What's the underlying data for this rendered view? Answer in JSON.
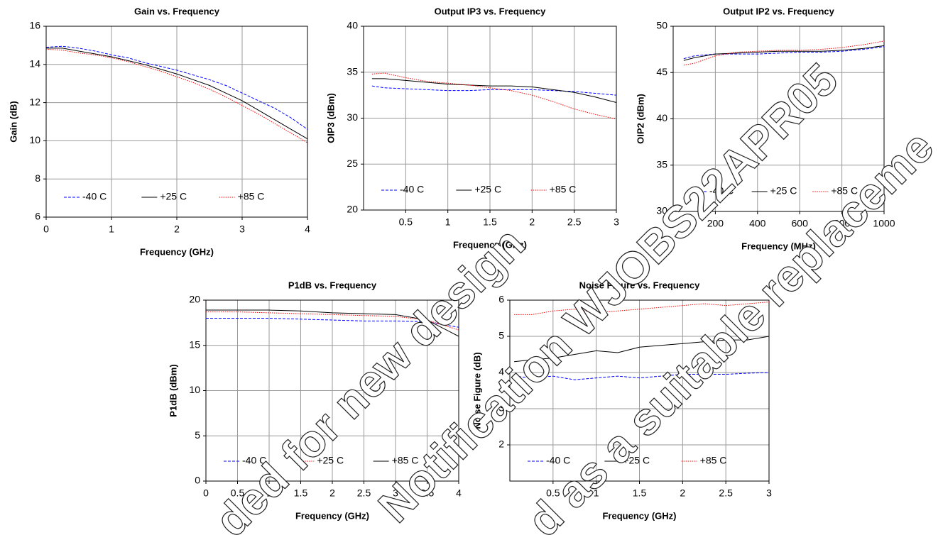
{
  "chart_data": [
    {
      "type": "line",
      "title": "Gain vs. Frequency",
      "x_label": "Frequency (GHz)",
      "y_label": "Gain (dB)",
      "x": [
        0,
        0.25,
        0.5,
        0.75,
        1,
        1.25,
        1.5,
        1.75,
        2,
        2.25,
        2.5,
        2.75,
        3,
        3.25,
        3.5,
        3.75,
        4
      ],
      "xlim": [
        0,
        4
      ],
      "xticks": [
        0,
        1,
        2,
        3,
        4
      ],
      "ylim": [
        6,
        16
      ],
      "yticks": [
        6,
        8,
        10,
        12,
        14,
        16
      ],
      "grid": true,
      "series": [
        {
          "name": "-40 C",
          "color": "#0000ff",
          "line_style": "dashed",
          "values": [
            14.9,
            14.95,
            14.85,
            14.7,
            14.5,
            14.35,
            14.1,
            13.9,
            13.7,
            13.45,
            13.2,
            12.9,
            12.5,
            12.1,
            11.7,
            11.2,
            10.6
          ]
        },
        {
          "name": "+25 C",
          "color": "#000000",
          "line_style": "solid",
          "values": [
            14.85,
            14.85,
            14.7,
            14.55,
            14.4,
            14.2,
            14.0,
            13.75,
            13.5,
            13.2,
            12.9,
            12.5,
            12.1,
            11.6,
            11.1,
            10.6,
            10.1
          ]
        },
        {
          "name": "+85 C",
          "color": "#ff0000",
          "line_style": "dotted",
          "values": [
            14.8,
            14.75,
            14.6,
            14.5,
            14.35,
            14.15,
            13.9,
            13.65,
            13.35,
            13.05,
            12.7,
            12.3,
            11.85,
            11.4,
            10.9,
            10.4,
            9.9
          ]
        }
      ]
    },
    {
      "type": "line",
      "title": "Output IP3 vs. Frequency",
      "x_label": "Frequency (GHz)",
      "y_label": "OIP3 (dBm)",
      "x": [
        0.1,
        0.25,
        0.5,
        0.75,
        1,
        1.25,
        1.5,
        1.75,
        2,
        2.25,
        2.5,
        2.75,
        3
      ],
      "xlim": [
        0,
        3
      ],
      "xticks": [
        0.5,
        1,
        1.5,
        2,
        2.5,
        3
      ],
      "ylim": [
        20,
        40
      ],
      "yticks": [
        20,
        25,
        30,
        35,
        40
      ],
      "grid": true,
      "series": [
        {
          "name": "-40 C",
          "color": "#0000ff",
          "line_style": "dashed",
          "values": [
            33.5,
            33.3,
            33.2,
            33.1,
            33.0,
            33.0,
            33.1,
            33.1,
            33.1,
            33.0,
            32.9,
            32.7,
            32.5
          ]
        },
        {
          "name": "+25 C",
          "color": "#000000",
          "line_style": "solid",
          "values": [
            34.3,
            34.3,
            34.1,
            33.9,
            33.7,
            33.6,
            33.5,
            33.5,
            33.4,
            33.1,
            32.8,
            32.3,
            31.7
          ]
        },
        {
          "name": "+85 C",
          "color": "#ff0000",
          "line_style": "dotted",
          "values": [
            34.8,
            34.9,
            34.4,
            34.0,
            33.8,
            33.6,
            33.3,
            33.0,
            32.5,
            31.8,
            31.0,
            30.4,
            29.9
          ]
        }
      ]
    },
    {
      "type": "line",
      "title": "Output IP2 vs. Frequency",
      "x_label": "Frequency (MHz)",
      "y_label": "OIP2 (dBm)",
      "x": [
        50,
        100,
        200,
        300,
        400,
        500,
        600,
        700,
        800,
        900,
        1000
      ],
      "xlim": [
        0,
        1000
      ],
      "xticks": [
        200,
        400,
        600,
        800,
        1000
      ],
      "ylim": [
        30,
        50
      ],
      "yticks": [
        30,
        35,
        40,
        45,
        50
      ],
      "grid": true,
      "series": [
        {
          "name": "-40 C",
          "color": "#0000ff",
          "line_style": "dashed",
          "values": [
            46.5,
            46.8,
            47.0,
            47.0,
            47.0,
            47.1,
            47.2,
            47.2,
            47.3,
            47.5,
            47.8
          ]
        },
        {
          "name": "+25 C",
          "color": "#000000",
          "line_style": "solid",
          "values": [
            46.3,
            46.6,
            47.0,
            47.1,
            47.2,
            47.3,
            47.3,
            47.3,
            47.4,
            47.6,
            47.9
          ]
        },
        {
          "name": "+85 C",
          "color": "#ff0000",
          "line_style": "dotted",
          "values": [
            45.8,
            46.0,
            46.8,
            47.2,
            47.3,
            47.4,
            47.4,
            47.5,
            47.7,
            48.0,
            48.4
          ]
        }
      ]
    },
    {
      "type": "line",
      "title": "P1dB vs. Frequency",
      "x_label": "Frequency (GHz)",
      "y_label": "P1dB (dBm)",
      "x": [
        0,
        0.5,
        1,
        1.5,
        2,
        2.5,
        3,
        3.5,
        4
      ],
      "xlim": [
        0,
        4
      ],
      "xticks": [
        0,
        0.5,
        1,
        1.5,
        2,
        2.5,
        3,
        3.5,
        4
      ],
      "ylim": [
        0,
        20
      ],
      "yticks": [
        0,
        5,
        10,
        15,
        20
      ],
      "grid": true,
      "series": [
        {
          "name": "-40 C",
          "color": "#0000ff",
          "line_style": "dashed",
          "values": [
            18.0,
            18.0,
            18.0,
            17.9,
            17.8,
            17.7,
            17.7,
            17.6,
            17.0
          ]
        },
        {
          "name": "+25 C",
          "color": "#ff0000",
          "line_style": "dotted",
          "values": [
            18.7,
            18.7,
            18.6,
            18.5,
            18.4,
            18.3,
            18.2,
            17.8,
            16.7
          ]
        },
        {
          "name": "+85 C",
          "color": "#000000",
          "line_style": "solid",
          "values": [
            18.9,
            18.9,
            18.9,
            18.8,
            18.6,
            18.5,
            18.4,
            17.8,
            16.0
          ]
        }
      ]
    },
    {
      "type": "line",
      "title": "Noise Figure vs. Frequency",
      "x_label": "Frequency (GHz)",
      "y_label": "Noise Figure (dB)",
      "x": [
        0.05,
        0.25,
        0.5,
        0.75,
        1,
        1.25,
        1.5,
        1.75,
        2,
        2.25,
        2.5,
        2.75,
        3
      ],
      "xlim": [
        0,
        3
      ],
      "xticks": [
        0.5,
        1,
        1.5,
        2,
        2.5,
        3
      ],
      "ylim": [
        1,
        6
      ],
      "yticks": [
        2,
        3,
        4,
        5,
        6
      ],
      "grid": true,
      "series": [
        {
          "name": "-40 C",
          "color": "#0000ff",
          "line_style": "dashed",
          "values": [
            3.9,
            3.85,
            3.9,
            3.8,
            3.85,
            3.9,
            3.85,
            3.9,
            3.95,
            3.95,
            3.95,
            3.98,
            4.0
          ]
        },
        {
          "name": "+25 C",
          "color": "#000000",
          "line_style": "solid",
          "values": [
            4.3,
            4.35,
            4.4,
            4.5,
            4.6,
            4.55,
            4.7,
            4.75,
            4.8,
            4.85,
            4.9,
            4.9,
            5.0
          ]
        },
        {
          "name": "+85 C",
          "color": "#ff0000",
          "line_style": "dotted",
          "values": [
            5.6,
            5.6,
            5.7,
            5.75,
            5.65,
            5.7,
            5.75,
            5.8,
            5.85,
            5.9,
            5.85,
            5.9,
            5.95
          ]
        }
      ]
    }
  ],
  "watermark": [
    "ded for new design",
    "Notification WJOBS22APR05",
    "d as a suitable replaceme"
  ]
}
